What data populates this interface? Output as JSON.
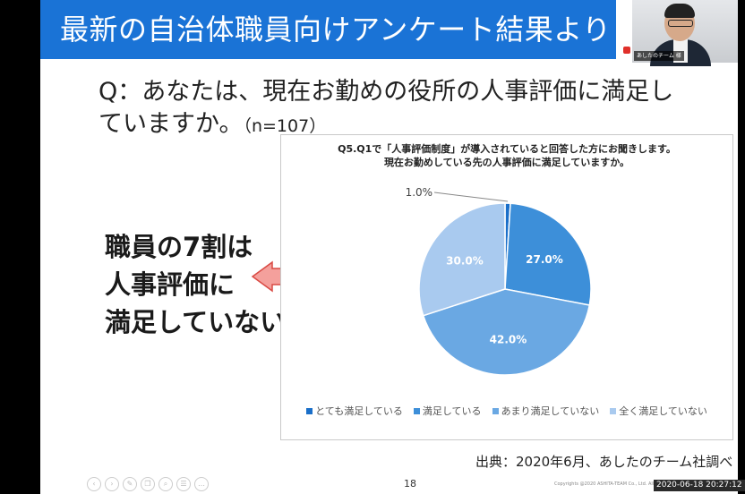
{
  "slide": {
    "title": "最新の自治体職員向けアンケート結果より",
    "question_line1": "Q：あなたは、現在お勤めの役所の人事評価に満足し",
    "question_line2": "ていますか。",
    "question_n": "（n=107）",
    "message_lines": [
      "職員の7割は",
      "人事評価に",
      "満足していない！"
    ],
    "source": "出典：2020年6月、あしたのチーム社調べ",
    "page_number": "18",
    "copyright": "Copyrights @2020 ASHITA-TEAM Co., Ltd. All Rights Reserved.",
    "arrow_color": "#f4a09c"
  },
  "video": {
    "name_tag": "あしたのチーム 様"
  },
  "toolbar": {
    "icons": [
      "back-icon",
      "forward-icon",
      "pen-icon",
      "copy-icon",
      "zoom-icon",
      "menu-icon",
      "more-icon"
    ]
  },
  "timestamp": "2020-06-18 20:27:12",
  "chart_data": {
    "type": "pie",
    "title_line1": "Q5.Q1で「人事評価制度」が導入されていると回答した方にお聞きします。",
    "title_line2": "現在お勤めしている先の人事評価に満足していますか。",
    "categories": [
      "とても満足している",
      "満足している",
      "あまり満足していない",
      "全く満足していない"
    ],
    "values": [
      1.0,
      27.0,
      42.0,
      30.0
    ],
    "labels": [
      "1.0%",
      "27.0%",
      "42.0%",
      "30.0%"
    ],
    "colors": [
      "#1a6fc9",
      "#3d8fd9",
      "#6aa8e3",
      "#a9caef"
    ],
    "legend": "bottom"
  }
}
